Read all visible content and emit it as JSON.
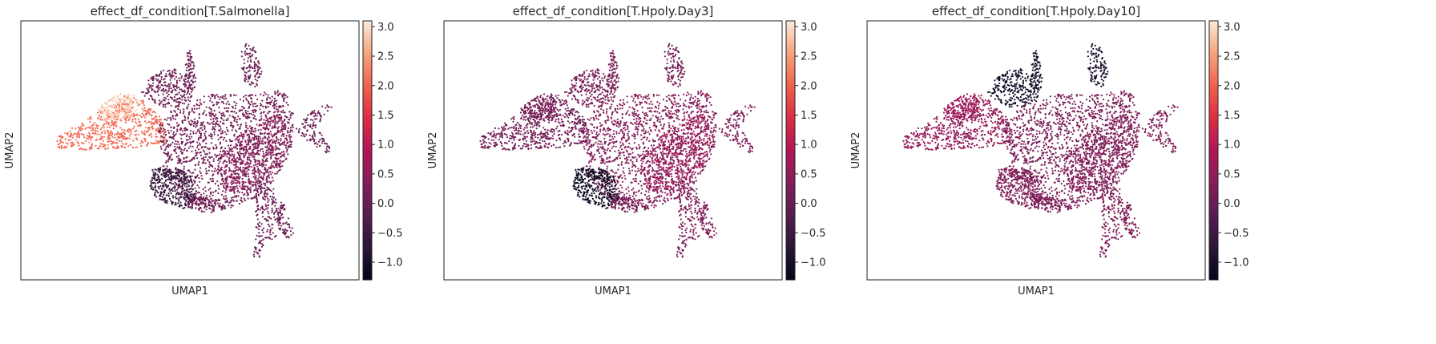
{
  "chart_data": [
    {
      "type": "scatter",
      "title": "effect_df_condition[T.Salmonella]",
      "xlabel": "UMAP1",
      "ylabel": "UMAP2",
      "colorbar": {
        "ticks": [
          "3.0",
          "2.5",
          "2.0",
          "1.5",
          "1.0",
          "0.5",
          "0.0",
          "−0.5",
          "−1.0"
        ],
        "vmin": -1.3,
        "vmax": 3.1,
        "colormap": "rocket"
      },
      "cluster_values": {
        "left_wing": 2.1,
        "left_tip": 2.9,
        "main_body": 0.15,
        "main_body_right": 0.45,
        "lower_left_blob": -0.6,
        "lower_blob": 0.1,
        "top_spike": 0.05,
        "right_arm": 0.05,
        "bottom_tail": 0.05,
        "upper_center": 0.1
      }
    },
    {
      "type": "scatter",
      "title": "effect_df_condition[T.Hpoly.Day3]",
      "xlabel": "UMAP1",
      "ylabel": "UMAP2",
      "colorbar": {
        "ticks": [
          "3.0",
          "2.5",
          "2.0",
          "1.5",
          "1.0",
          "0.5",
          "0.0",
          "−0.5",
          "−1.0"
        ],
        "vmin": -1.3,
        "vmax": 3.1,
        "colormap": "rocket"
      },
      "cluster_values": {
        "left_wing": 0.15,
        "left_tip": 0.2,
        "main_body": 0.35,
        "main_body_right": 0.65,
        "lower_left_blob": -1.15,
        "lower_blob": 0.2,
        "top_spike": 0.2,
        "right_arm": 0.3,
        "bottom_tail": 0.3,
        "upper_center": 0.25
      }
    },
    {
      "type": "scatter",
      "title": "effect_df_condition[T.Hpoly.Day10]",
      "xlabel": "UMAP1",
      "ylabel": "UMAP2",
      "colorbar": {
        "ticks": [
          "3.0",
          "2.5",
          "2.0",
          "1.5",
          "1.0",
          "0.5",
          "0.0",
          "−0.5",
          "−1.0"
        ],
        "vmin": -1.3,
        "vmax": 3.1,
        "colormap": "rocket"
      },
      "cluster_values": {
        "left_wing": 0.55,
        "left_tip": 0.7,
        "main_body": 0.25,
        "main_body_right": 0.35,
        "lower_left_blob": 0.3,
        "lower_blob": 0.25,
        "top_spike": -0.95,
        "right_arm": 0.3,
        "bottom_tail": 0.3,
        "upper_center": -1.1
      }
    }
  ]
}
